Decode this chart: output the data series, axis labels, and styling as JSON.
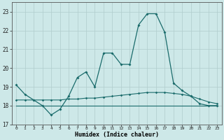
{
  "title": "",
  "xlabel": "Humidex (Indice chaleur)",
  "ylabel": "",
  "bg_color": "#cde8e8",
  "grid_color": "#b0cccc",
  "line_color": "#1a6b6b",
  "xlim": [
    -0.5,
    23.5
  ],
  "ylim": [
    17,
    23.5
  ],
  "yticks": [
    17,
    18,
    19,
    20,
    21,
    22,
    23
  ],
  "xticks": [
    0,
    1,
    2,
    3,
    4,
    5,
    6,
    7,
    8,
    9,
    10,
    11,
    12,
    13,
    14,
    15,
    16,
    17,
    18,
    19,
    20,
    21,
    22,
    23
  ],
  "line1_x": [
    0,
    1,
    2,
    3,
    4,
    5,
    6,
    7,
    8,
    9,
    10,
    11,
    12,
    13,
    14,
    15,
    16,
    17,
    18,
    19,
    20,
    21,
    22,
    23
  ],
  "line1_y": [
    19.1,
    18.6,
    18.3,
    18.0,
    17.5,
    17.8,
    18.5,
    19.5,
    19.8,
    19.0,
    20.8,
    20.8,
    20.2,
    20.2,
    22.3,
    22.9,
    22.9,
    21.9,
    19.2,
    18.8,
    18.5,
    18.1,
    18.0,
    18.0
  ],
  "line2_x": [
    0,
    1,
    2,
    3,
    4,
    5,
    6,
    7,
    8,
    9,
    10,
    11,
    12,
    13,
    14,
    15,
    16,
    17,
    18,
    19,
    20,
    21,
    22,
    23
  ],
  "line2_y": [
    18.3,
    18.3,
    18.3,
    18.3,
    18.3,
    18.3,
    18.35,
    18.35,
    18.4,
    18.4,
    18.45,
    18.5,
    18.55,
    18.6,
    18.65,
    18.7,
    18.7,
    18.7,
    18.65,
    18.6,
    18.5,
    18.35,
    18.2,
    18.1
  ],
  "line3_x": [
    0,
    1,
    2,
    3,
    4,
    5,
    6,
    7,
    8,
    9,
    10,
    11,
    12,
    13,
    14,
    15,
    16,
    17,
    18,
    19,
    20,
    21,
    22,
    23
  ],
  "line3_y": [
    18.0,
    18.0,
    18.0,
    18.0,
    18.0,
    18.0,
    18.0,
    18.0,
    18.0,
    18.0,
    18.0,
    18.0,
    18.0,
    18.0,
    18.0,
    18.0,
    18.0,
    18.0,
    18.0,
    18.0,
    18.0,
    18.0,
    18.0,
    18.0
  ]
}
